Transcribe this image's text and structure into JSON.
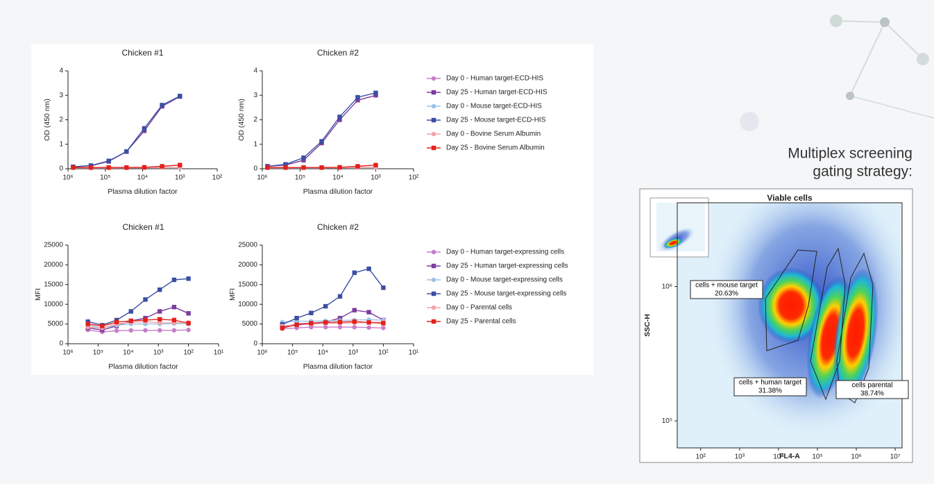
{
  "heading": [
    "Multiplex screening",
    "gating strategy:"
  ],
  "chart_data": [
    {
      "type": "line",
      "title": "Chicken #1",
      "xlabel": "Plasma dilution factor",
      "ylabel": "OD (450 nm)",
      "xscale": "log",
      "x": [
        729000,
        243000,
        81000,
        27000,
        9000,
        3000,
        1000
      ],
      "xlim": [
        1000000,
        100
      ],
      "xticks": [
        {
          "value": 1000000,
          "label": "10⁶"
        },
        {
          "value": 100000,
          "label": "10⁵"
        },
        {
          "value": 10000,
          "label": "10⁴"
        },
        {
          "value": 1000,
          "label": "10³"
        },
        {
          "value": 100,
          "label": "10²"
        }
      ],
      "ylim": [
        0,
        4
      ],
      "yticks": [
        0,
        1,
        2,
        3,
        4
      ],
      "legend": false,
      "series": [
        {
          "color": "#c77dc7",
          "marker": "circle",
          "values": [
            0.05,
            0.05,
            0.04,
            0.04,
            0.04,
            0.05,
            0.05
          ]
        },
        {
          "color": "#7a3c9e",
          "marker": "square",
          "values": [
            0.08,
            0.12,
            0.3,
            0.7,
            1.55,
            2.55,
            2.95
          ]
        },
        {
          "color": "#9cc3e6",
          "marker": "circle",
          "values": [
            0.04,
            0.04,
            0.04,
            0.04,
            0.04,
            0.05,
            0.05
          ]
        },
        {
          "color": "#3a4ea2",
          "marker": "square",
          "values": [
            0.08,
            0.13,
            0.32,
            0.7,
            1.65,
            2.6,
            2.97
          ]
        },
        {
          "color": "#f2a3a8",
          "marker": "circle",
          "values": [
            0.03,
            0.03,
            0.03,
            0.03,
            0.04,
            0.04,
            0.05
          ]
        },
        {
          "color": "#e3211c",
          "marker": "square",
          "values": [
            0.05,
            0.05,
            0.05,
            0.05,
            0.06,
            0.1,
            0.15
          ]
        }
      ]
    },
    {
      "type": "line",
      "title": "Chicken #2",
      "xlabel": "Plasma dilution factor",
      "ylabel": "OD (450 nm)",
      "xscale": "log",
      "x": [
        729000,
        243000,
        81000,
        27000,
        9000,
        3000,
        1000
      ],
      "xlim": [
        1000000,
        100
      ],
      "xticks": [
        {
          "value": 1000000,
          "label": "10⁶"
        },
        {
          "value": 100000,
          "label": "10⁵"
        },
        {
          "value": 10000,
          "label": "10⁴"
        },
        {
          "value": 1000,
          "label": "10³"
        },
        {
          "value": 100,
          "label": "10²"
        }
      ],
      "ylim": [
        0,
        4
      ],
      "yticks": [
        0,
        1,
        2,
        3,
        4
      ],
      "legend": true,
      "series": [
        {
          "name": "Day 0 - Human target-ECD-HIS",
          "color": "#c77dc7",
          "marker": "circle",
          "values": [
            0.05,
            0.05,
            0.04,
            0.04,
            0.04,
            0.05,
            0.05
          ]
        },
        {
          "name": "Day 25 - Human target-ECD-HIS",
          "color": "#7a3c9e",
          "marker": "square",
          "values": [
            0.1,
            0.15,
            0.35,
            1.05,
            2.0,
            2.8,
            3.0
          ]
        },
        {
          "name": "Day 0  - Mouse target-ECD-HIS",
          "color": "#9cc3e6",
          "marker": "circle",
          "values": [
            0.04,
            0.04,
            0.04,
            0.04,
            0.04,
            0.05,
            0.05
          ]
        },
        {
          "name": "Day 25  - Mouse target-ECD-HIS",
          "color": "#3a4ea2",
          "marker": "square",
          "values": [
            0.1,
            0.18,
            0.45,
            1.12,
            2.12,
            2.92,
            3.1
          ]
        },
        {
          "name": "Day 0  - Bovine Serum Albumin",
          "color": "#f2a3a8",
          "marker": "circle",
          "values": [
            0.03,
            0.03,
            0.03,
            0.03,
            0.04,
            0.05,
            0.06
          ]
        },
        {
          "name": "Day 25  - Bovine Serum Albumin",
          "color": "#e3211c",
          "marker": "square",
          "values": [
            0.05,
            0.05,
            0.05,
            0.05,
            0.06,
            0.1,
            0.15
          ]
        }
      ]
    },
    {
      "type": "line",
      "title": "Chicken #1",
      "xlabel": "Plasma dilution factor",
      "ylabel": "MFI",
      "xscale": "log",
      "x": [
        218700,
        72900,
        24300,
        8100,
        2700,
        900,
        300,
        100
      ],
      "xlim": [
        1000000,
        10
      ],
      "xticks": [
        {
          "value": 1000000,
          "label": "10⁶"
        },
        {
          "value": 100000,
          "label": "10⁵"
        },
        {
          "value": 10000,
          "label": "10⁴"
        },
        {
          "value": 1000,
          "label": "10³"
        },
        {
          "value": 100,
          "label": "10²"
        },
        {
          "value": 10,
          "label": "10¹"
        }
      ],
      "ylim": [
        0,
        25000
      ],
      "yticks": [
        0,
        5000,
        10000,
        15000,
        20000,
        25000
      ],
      "legend": false,
      "series": [
        {
          "color": "#c77dc7",
          "marker": "circle",
          "values": [
            3500,
            3000,
            3300,
            3400,
            3400,
            3400,
            3400,
            3500
          ]
        },
        {
          "color": "#7a3c9e",
          "marker": "square",
          "values": [
            4000,
            3500,
            4500,
            5800,
            6500,
            8200,
            9300,
            7700
          ]
        },
        {
          "color": "#9cc3e6",
          "marker": "circle",
          "values": [
            4700,
            4000,
            4700,
            5000,
            5000,
            5000,
            5100,
            5000
          ]
        },
        {
          "color": "#3a4ea2",
          "marker": "square",
          "values": [
            5600,
            4700,
            6000,
            8200,
            11200,
            13700,
            16200,
            16500
          ]
        },
        {
          "color": "#f2a3a8",
          "marker": "circle",
          "values": [
            4200,
            4000,
            5000,
            5400,
            5600,
            5300,
            5300,
            5400
          ]
        },
        {
          "color": "#e3211c",
          "marker": "square",
          "values": [
            5000,
            4500,
            5500,
            5800,
            6000,
            6200,
            6000,
            5200
          ]
        }
      ]
    },
    {
      "type": "line",
      "title": "Chicken #2",
      "xlabel": "Plasma dilution factor",
      "ylabel": "MFI",
      "xscale": "log",
      "x": [
        218700,
        72900,
        24300,
        8100,
        2700,
        900,
        300,
        100
      ],
      "xlim": [
        1000000,
        10
      ],
      "xticks": [
        {
          "value": 1000000,
          "label": "10⁶"
        },
        {
          "value": 100000,
          "label": "10⁵"
        },
        {
          "value": 10000,
          "label": "10⁴"
        },
        {
          "value": 1000,
          "label": "10³"
        },
        {
          "value": 100,
          "label": "10²"
        },
        {
          "value": 10,
          "label": "10¹"
        }
      ],
      "ylim": [
        0,
        25000
      ],
      "yticks": [
        0,
        5000,
        10000,
        15000,
        20000,
        25000
      ],
      "legend": true,
      "series": [
        {
          "name": "Day 0 - Human target-expressing cells",
          "color": "#c77dc7",
          "marker": "circle",
          "values": [
            3800,
            4000,
            4200,
            4200,
            4200,
            4200,
            4100,
            4000
          ]
        },
        {
          "name": "Day 25 - Human target-expressing cells",
          "color": "#7a3c9e",
          "marker": "square",
          "values": [
            4200,
            5000,
            5200,
            5500,
            6500,
            8500,
            8000,
            6000
          ]
        },
        {
          "name": "Day 0 - Mouse target-expressing cells",
          "color": "#9cc3e6",
          "marker": "circle",
          "values": [
            5500,
            5700,
            5700,
            5800,
            5900,
            6000,
            6100,
            6000
          ]
        },
        {
          "name": "Day 25 - Mouse target-expressing cells",
          "color": "#3a4ea2",
          "marker": "square",
          "values": [
            4900,
            6500,
            7800,
            9500,
            12000,
            18000,
            19000,
            14200
          ]
        },
        {
          "name": "Day 0 - Parental cells",
          "color": "#f2a3a8",
          "marker": "circle",
          "values": [
            4500,
            4800,
            5000,
            5200,
            5200,
            5300,
            5400,
            5500
          ]
        },
        {
          "name": "Day 25 - Parental cells",
          "color": "#e3211c",
          "marker": "square",
          "values": [
            4000,
            4800,
            5200,
            5400,
            5500,
            5600,
            5400,
            5200
          ]
        }
      ]
    },
    {
      "type": "density",
      "title": "Viable cells",
      "xlabel": "FL4-A",
      "ylabel": "SSC-H",
      "xscale": "log",
      "yscale": "log",
      "xlim": [
        25,
        15000000
      ],
      "xticks": [
        {
          "value": 100,
          "label": "10²"
        },
        {
          "value": 1000,
          "label": "10³"
        },
        {
          "value": 10000,
          "label": "10⁴"
        },
        {
          "value": 100000,
          "label": "10⁵"
        },
        {
          "value": 1000000,
          "label": "10⁶"
        },
        {
          "value": 10000000,
          "label": "10⁷"
        }
      ],
      "ylim": [
        63000,
        4200000
      ],
      "yticks": [
        {
          "value": 100000,
          "label": "10⁵"
        },
        {
          "value": 1000000,
          "label": "10⁶"
        }
      ],
      "categories": [
        "cells + mouse target",
        "cells + human target",
        "cells parental"
      ],
      "values": [
        20.63,
        31.38,
        38.74
      ],
      "value_labels": [
        "20.63%",
        "31.38%",
        "38.74%"
      ]
    }
  ]
}
